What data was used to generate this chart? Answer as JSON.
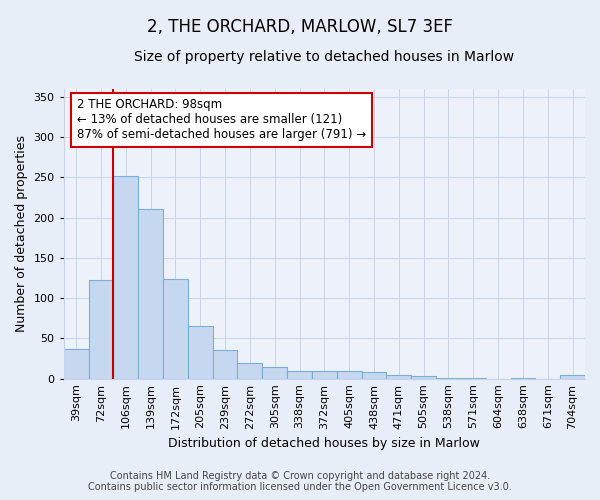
{
  "title": "2, THE ORCHARD, MARLOW, SL7 3EF",
  "subtitle": "Size of property relative to detached houses in Marlow",
  "xlabel": "Distribution of detached houses by size in Marlow",
  "ylabel": "Number of detached properties",
  "bar_labels": [
    "39sqm",
    "72sqm",
    "106sqm",
    "139sqm",
    "172sqm",
    "205sqm",
    "239sqm",
    "272sqm",
    "305sqm",
    "338sqm",
    "372sqm",
    "405sqm",
    "438sqm",
    "471sqm",
    "505sqm",
    "538sqm",
    "571sqm",
    "604sqm",
    "638sqm",
    "671sqm",
    "704sqm"
  ],
  "bar_values": [
    37,
    123,
    252,
    211,
    124,
    65,
    35,
    19,
    14,
    9,
    9,
    9,
    8,
    4,
    3,
    1,
    1,
    0,
    1,
    0,
    4
  ],
  "bar_color": "#c5d8f0",
  "bar_edgecolor": "#7aaed6",
  "vline_x": 2,
  "vline_color": "#cc0000",
  "ylim": [
    0,
    360
  ],
  "yticks": [
    0,
    50,
    100,
    150,
    200,
    250,
    300,
    350
  ],
  "annotation_text": "2 THE ORCHARD: 98sqm\n← 13% of detached houses are smaller (121)\n87% of semi-detached houses are larger (791) →",
  "annotation_box_facecolor": "#ffffff",
  "annotation_box_edgecolor": "#cc0000",
  "footer_line1": "Contains HM Land Registry data © Crown copyright and database right 2024.",
  "footer_line2": "Contains public sector information licensed under the Open Government Licence v3.0.",
  "bg_color": "#e8eef8",
  "plot_bg_color": "#edf2fa",
  "grid_color": "#c8d4e8",
  "title_fontsize": 12,
  "subtitle_fontsize": 10,
  "tick_fontsize": 8,
  "ylabel_fontsize": 9,
  "xlabel_fontsize": 9,
  "annotation_fontsize": 8.5,
  "footer_fontsize": 7
}
